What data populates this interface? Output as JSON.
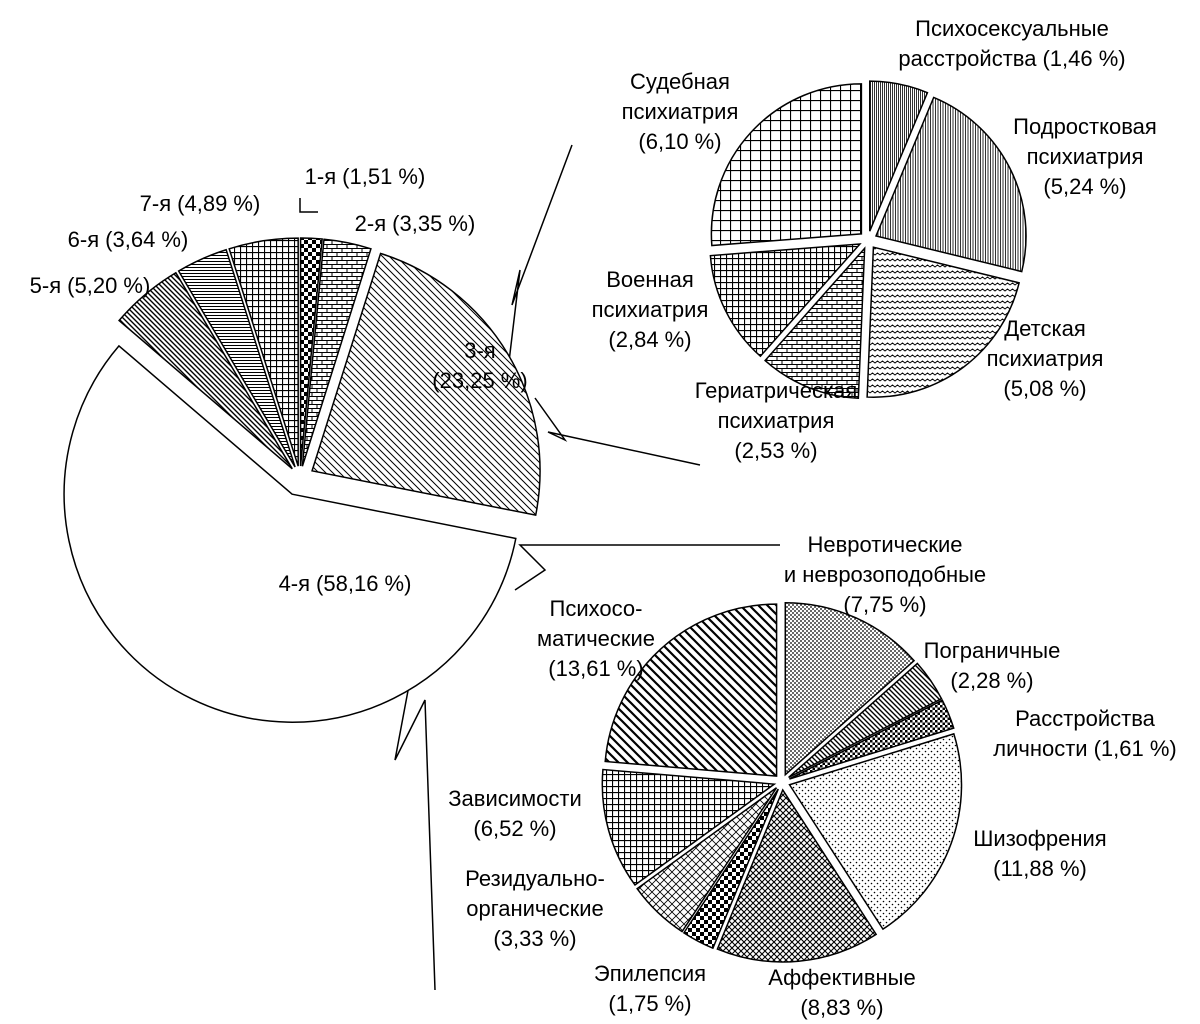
{
  "chart_data": [
    {
      "type": "pie",
      "categories": [
        [
          "1-я"
        ],
        [
          "2-я"
        ],
        [
          "3-я"
        ],
        [
          "4-я"
        ],
        [
          "5-я"
        ],
        [
          "6-я"
        ],
        [
          "7-я"
        ]
      ],
      "values": [
        1.51,
        3.35,
        23.25,
        58.16,
        5.2,
        3.64,
        4.89
      ],
      "value_labels": [
        "(1,51 %)",
        "(3,35 %)",
        "(23,25 %)",
        "(58,16 %)",
        "(5,20 %)",
        "(3,64 %)",
        "(4,89 %)"
      ],
      "patterns": [
        "checker",
        "brick",
        "diag",
        "none",
        "diagdense",
        "hlines",
        "grid"
      ]
    },
    {
      "type": "pie",
      "categories": [
        [
          "Психосексуальные",
          "расстройства"
        ],
        [
          "Подростковая",
          "психиатрия"
        ],
        [
          "Детская",
          "психиатрия"
        ],
        [
          "Гериатрическая",
          "психиатрия"
        ],
        [
          "Военная",
          "психиатрия"
        ],
        [
          "Судебная",
          "психиатрия"
        ]
      ],
      "values": [
        1.46,
        5.24,
        5.08,
        2.53,
        2.84,
        6.1
      ],
      "value_labels": [
        "(1,46 %)",
        "(5,24 %)",
        "(5,08 %)",
        "(2,53 %)",
        "(2,84 %)",
        "(6,10 %)"
      ],
      "patterns": [
        "vlinesdense",
        "vlines",
        "wave",
        "brick",
        "grid",
        "gridlarge"
      ]
    },
    {
      "type": "pie",
      "categories": [
        [
          "Невротические",
          "и неврозоподобные"
        ],
        [
          "Пограничные"
        ],
        [
          "Расстройства",
          "личности"
        ],
        [
          "Шизофрения"
        ],
        [
          "Аффективные"
        ],
        [
          "Эпилепсия"
        ],
        [
          "Резидуально-",
          "органические"
        ],
        [
          "Зависимости"
        ],
        [
          "Психосо-",
          "матические"
        ]
      ],
      "values": [
        7.75,
        2.28,
        1.61,
        11.88,
        8.83,
        1.75,
        3.33,
        6.52,
        13.61
      ],
      "value_labels": [
        "(7,75 %)",
        "(2,28 %)",
        "(1,61 %)",
        "(11,88 %)",
        "(8,83 %)",
        "(1,75 %)",
        "(3,33 %)",
        "(6,52 %)",
        "(13,61 %)"
      ],
      "patterns": [
        "dotsdense",
        "diagdense",
        "checkersmall",
        "dots",
        "cross",
        "checker",
        "diagcross",
        "grid",
        "diagwide"
      ]
    }
  ]
}
